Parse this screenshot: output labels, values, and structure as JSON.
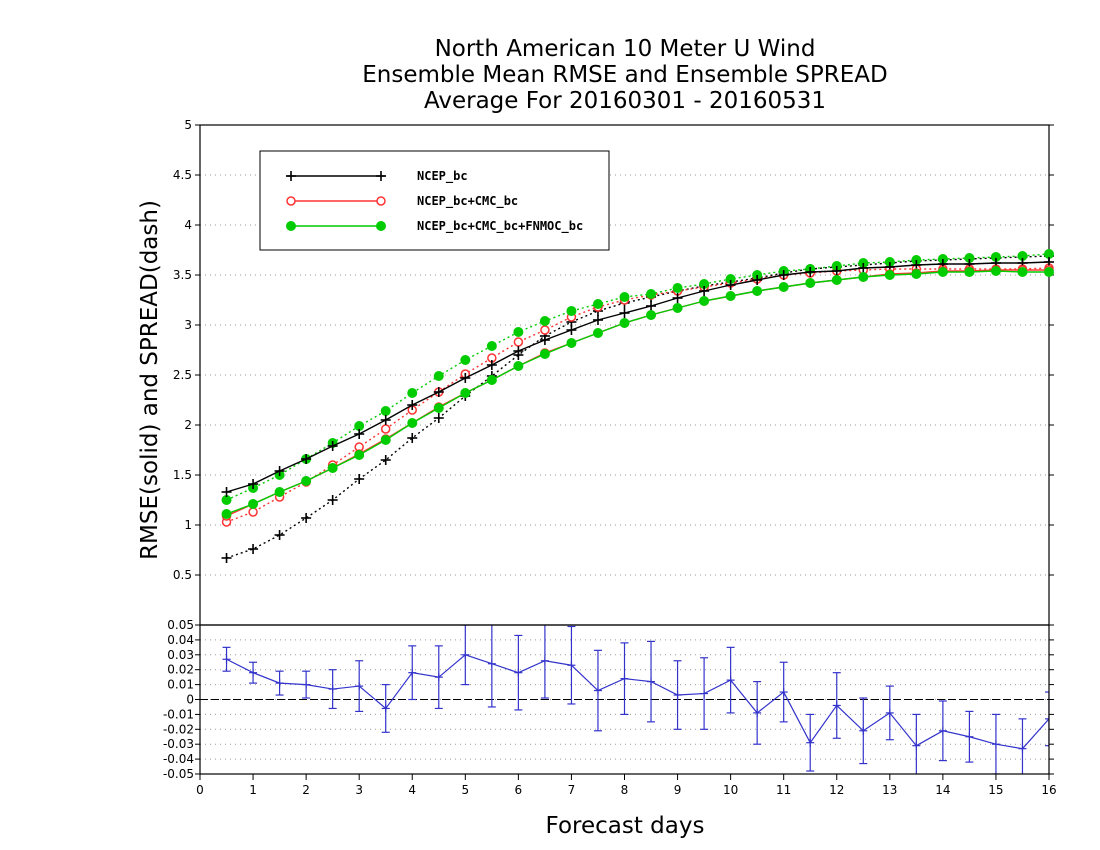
{
  "title": {
    "line1": "North American 10 Meter U Wind",
    "line2": "Ensemble Mean RMSE and Ensemble SPREAD",
    "line3": "Average For 20160301 - 20160531"
  },
  "chart_data": [
    {
      "type": "line",
      "panel": "top",
      "xlabel": "Forecast days",
      "ylabel": "RMSE(solid) and SPREAD(dash)",
      "xlim": [
        0,
        16
      ],
      "ylim": [
        0,
        5
      ],
      "x_ticks": [
        0,
        1,
        2,
        3,
        4,
        5,
        6,
        7,
        8,
        9,
        10,
        11,
        12,
        13,
        14,
        15,
        16
      ],
      "y_ticks": [
        0.5,
        1,
        1.5,
        2,
        2.5,
        3,
        3.5,
        4,
        4.5,
        5
      ],
      "grid": "horizontal-dotted",
      "legend_position": "top-left",
      "x": [
        0.5,
        1,
        1.5,
        2,
        2.5,
        3,
        3.5,
        4,
        4.5,
        5,
        5.5,
        6,
        6.5,
        7,
        7.5,
        8,
        8.5,
        9,
        9.5,
        10,
        10.5,
        11,
        11.5,
        12,
        12.5,
        13,
        13.5,
        14,
        14.5,
        15,
        15.5,
        16
      ],
      "series": [
        {
          "name": "NCEP_bc",
          "color": "#000000",
          "marker": "plus",
          "rmse": [
            1.33,
            1.41,
            1.54,
            1.66,
            1.79,
            1.91,
            2.05,
            2.2,
            2.33,
            2.47,
            2.6,
            2.74,
            2.85,
            2.95,
            3.05,
            3.12,
            3.19,
            3.27,
            3.34,
            3.4,
            3.45,
            3.5,
            3.53,
            3.54,
            3.57,
            3.58,
            3.6,
            3.61,
            3.61,
            3.62,
            3.62,
            3.63
          ],
          "spread": [
            0.67,
            0.76,
            0.9,
            1.07,
            1.25,
            1.46,
            1.65,
            1.87,
            2.07,
            2.29,
            2.49,
            2.7,
            2.89,
            3.03,
            3.14,
            3.22,
            3.28,
            3.34,
            3.39,
            3.43,
            3.47,
            3.52,
            3.56,
            3.58,
            3.6,
            3.62,
            3.64,
            3.65,
            3.66,
            3.67,
            3.68,
            3.69
          ]
        },
        {
          "name": "NCEP_bc+CMC_bc",
          "color": "#ff3333",
          "marker": "open-circle",
          "rmse": [
            1.09,
            1.21,
            1.33,
            1.44,
            1.57,
            1.71,
            1.86,
            2.02,
            2.18,
            2.32,
            2.45,
            2.59,
            2.72,
            2.82,
            2.92,
            3.02,
            3.1,
            3.17,
            3.24,
            3.29,
            3.34,
            3.38,
            3.42,
            3.45,
            3.48,
            3.51,
            3.52,
            3.54,
            3.54,
            3.55,
            3.55,
            3.55
          ],
          "spread": [
            1.03,
            1.13,
            1.28,
            1.43,
            1.6,
            1.78,
            1.96,
            2.15,
            2.33,
            2.51,
            2.67,
            2.83,
            2.95,
            3.08,
            3.18,
            3.25,
            3.3,
            3.34,
            3.38,
            3.42,
            3.46,
            3.5,
            3.52,
            3.54,
            3.55,
            3.56,
            3.56,
            3.56,
            3.56,
            3.56,
            3.56,
            3.57
          ]
        },
        {
          "name": "NCEP_bc+CMC_bc+FNMOC_bc",
          "color": "#00cc00",
          "marker": "filled-circle",
          "rmse": [
            1.11,
            1.21,
            1.33,
            1.44,
            1.57,
            1.7,
            1.85,
            2.02,
            2.17,
            2.32,
            2.45,
            2.59,
            2.71,
            2.82,
            2.92,
            3.02,
            3.1,
            3.17,
            3.24,
            3.29,
            3.34,
            3.38,
            3.42,
            3.45,
            3.48,
            3.5,
            3.51,
            3.53,
            3.53,
            3.54,
            3.53,
            3.53
          ],
          "spread": [
            1.25,
            1.37,
            1.5,
            1.66,
            1.82,
            1.99,
            2.14,
            2.32,
            2.49,
            2.65,
            2.79,
            2.93,
            3.04,
            3.14,
            3.21,
            3.28,
            3.31,
            3.37,
            3.41,
            3.46,
            3.5,
            3.54,
            3.56,
            3.59,
            3.62,
            3.63,
            3.65,
            3.66,
            3.67,
            3.68,
            3.69,
            3.71
          ]
        }
      ]
    },
    {
      "type": "line",
      "panel": "bottom",
      "description_of_values": "difference with error bars",
      "xlim": [
        0,
        16
      ],
      "ylim": [
        -0.05,
        0.05
      ],
      "y_ticks": [
        -0.05,
        -0.04,
        -0.03,
        -0.02,
        -0.01,
        0,
        0.01,
        0.02,
        0.03,
        0.04,
        0.05
      ],
      "y_tick_labels": [
        "-0.05",
        "-0.04",
        "-0.03",
        "-0.02",
        "-0.01",
        "0",
        "0.01",
        "0.02",
        "0.03",
        "0.04",
        "0.05"
      ],
      "color": "#3333cc",
      "x": [
        0.5,
        1,
        1.5,
        2,
        2.5,
        3,
        3.5,
        4,
        4.5,
        5,
        5.5,
        6,
        6.5,
        7,
        7.5,
        8,
        8.5,
        9,
        9.5,
        10,
        10.5,
        11,
        11.5,
        12,
        12.5,
        13,
        13.5,
        14,
        14.5,
        15,
        15.5,
        16
      ],
      "values": [
        0.027,
        0.018,
        0.011,
        0.01,
        0.007,
        0.009,
        -0.006,
        0.018,
        0.015,
        0.03,
        0.024,
        0.018,
        0.026,
        0.023,
        0.006,
        0.014,
        0.012,
        0.003,
        0.004,
        0.013,
        -0.009,
        0.005,
        -0.029,
        -0.004,
        -0.021,
        -0.009,
        -0.031,
        -0.021,
        -0.025,
        -0.03,
        -0.033,
        -0.013
      ],
      "errors": [
        0.008,
        0.007,
        0.008,
        0.009,
        0.013,
        0.017,
        0.016,
        0.018,
        0.021,
        0.02,
        0.029,
        0.025,
        0.025,
        0.026,
        0.027,
        0.024,
        0.027,
        0.023,
        0.024,
        0.022,
        0.021,
        0.02,
        0.019,
        0.022,
        0.022,
        0.018,
        0.021,
        0.02,
        0.017,
        0.02,
        0.02,
        0.018
      ]
    }
  ]
}
